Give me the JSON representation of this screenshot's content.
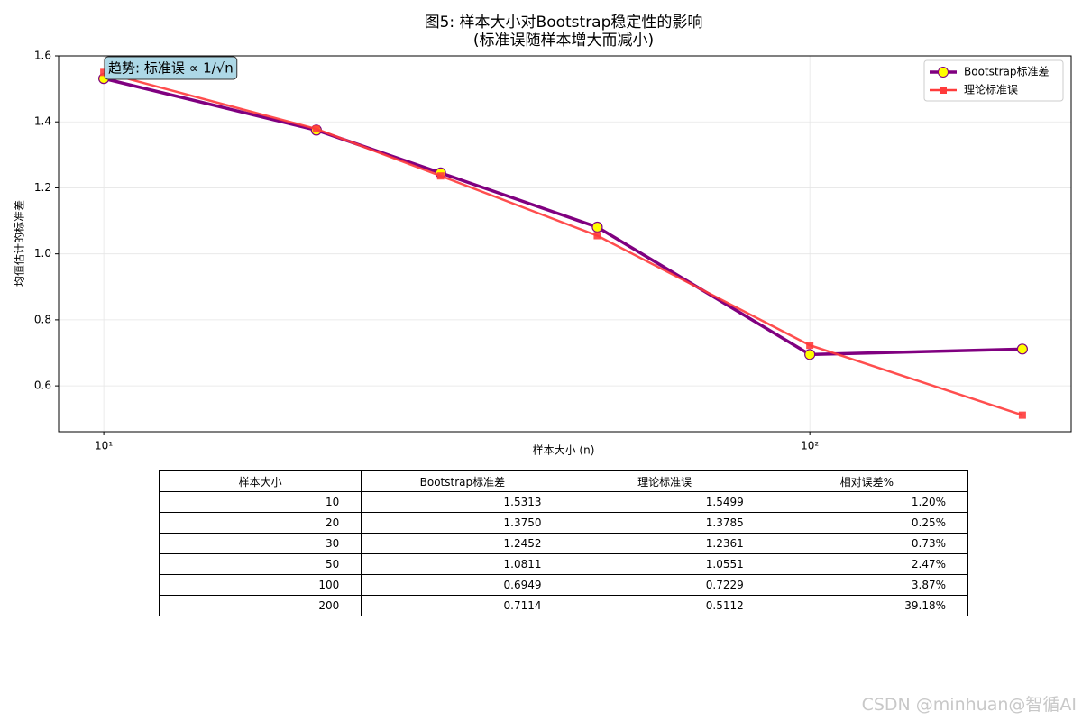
{
  "chart_data": {
    "type": "line",
    "title": "图5: 样本大小对Bootstrap稳定性的影响",
    "subtitle": "(标准误随样本增大而减小)",
    "x_label": "样本大小 (n)",
    "y_label": "均值估计的标准差",
    "annotation": "趋势: 标准误 ∝ 1/√n",
    "x": [
      10,
      20,
      30,
      50,
      100,
      200
    ],
    "xscale": "log",
    "xlim": [
      8.63,
      234.5
    ],
    "xticks": [
      {
        "value": 10,
        "label": "10¹"
      },
      {
        "value": 100,
        "label": "10²"
      }
    ],
    "ylim": [
      0.461,
      1.6
    ],
    "yticks": [
      0.6,
      0.8,
      {
        "value": 1,
        "label": "1.0"
      },
      1.2,
      1.4,
      1.6
    ],
    "grid": true,
    "legend": "upper right",
    "series": [
      {
        "name": "Bootstrap标准差",
        "color": "#800080",
        "marker_color": "#ffff00",
        "marker": "circle",
        "values": [
          1.5313,
          1.375,
          1.2452,
          1.0811,
          0.6949,
          0.7114
        ]
      },
      {
        "name": "理论标准误",
        "color": "#ff3b3b",
        "marker_color": "#ff3b3b",
        "marker": "square",
        "values": [
          1.5499,
          1.3785,
          1.2361,
          1.0551,
          0.7229,
          0.5112
        ]
      }
    ]
  },
  "table": {
    "header": [
      "样本大小",
      "Bootstrap标准差",
      "理论标准误",
      "相对误差%"
    ],
    "rows": [
      [
        "10",
        "1.5313",
        "1.5499",
        "1.20%"
      ],
      [
        "20",
        "1.3750",
        "1.3785",
        "0.25%"
      ],
      [
        "30",
        "1.2452",
        "1.2361",
        "0.73%"
      ],
      [
        "50",
        "1.0811",
        "1.0551",
        "2.47%"
      ],
      [
        "100",
        "0.6949",
        "0.7229",
        "3.87%"
      ],
      [
        "200",
        "0.7114",
        "0.5112",
        "39.18%"
      ]
    ]
  },
  "watermark": "CSDN @minhuan@智循AI"
}
